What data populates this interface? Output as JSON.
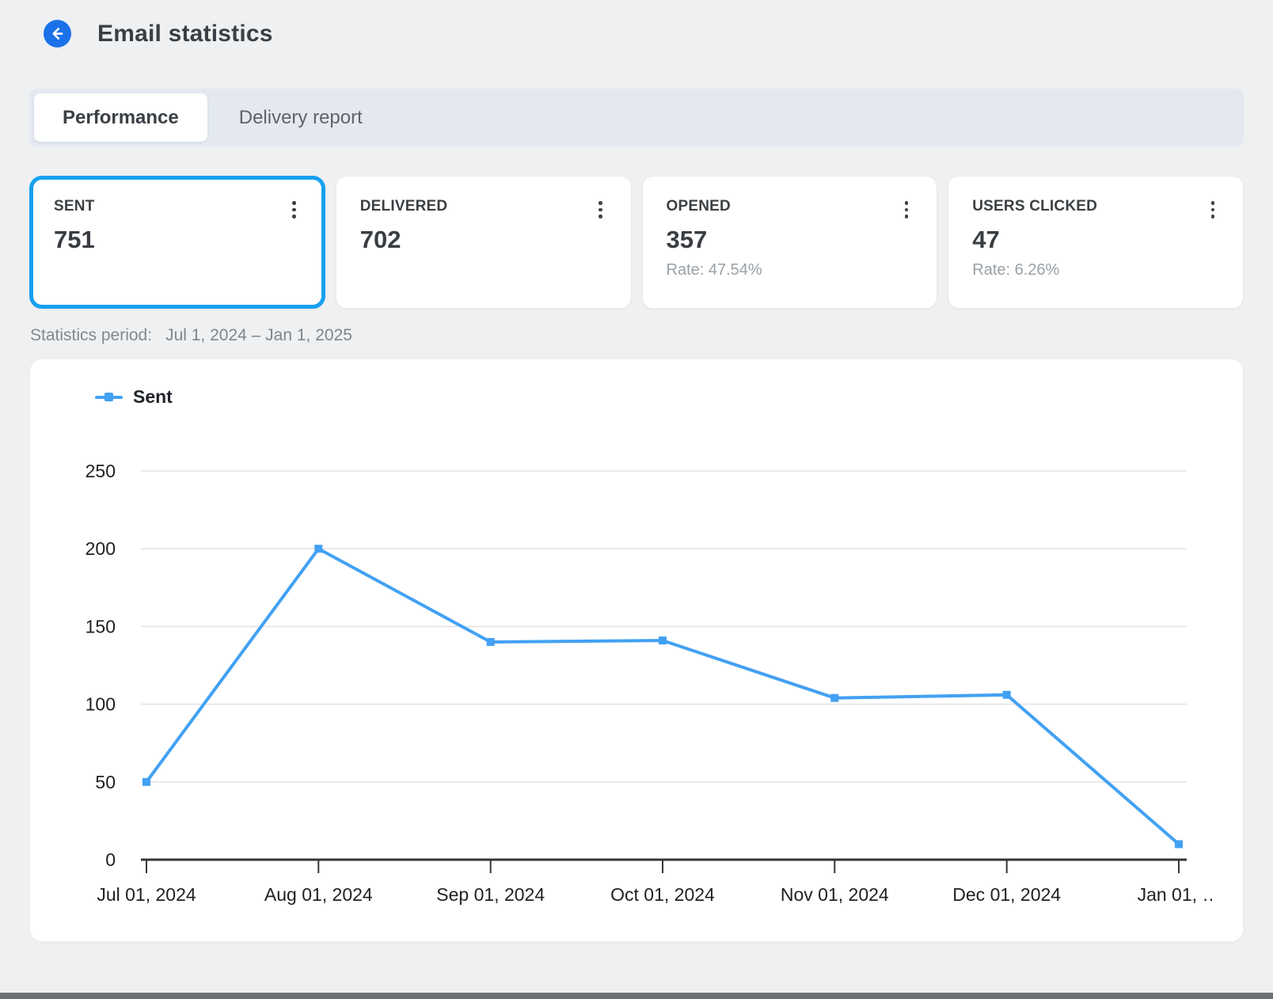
{
  "header": {
    "title": "Email statistics"
  },
  "tabs": [
    {
      "label": "Performance",
      "active": true
    },
    {
      "label": "Delivery report",
      "active": false
    }
  ],
  "cards": [
    {
      "label": "SENT",
      "value": "751",
      "rate": "",
      "selected": true
    },
    {
      "label": "DELIVERED",
      "value": "702",
      "rate": "",
      "selected": false
    },
    {
      "label": "OPENED",
      "value": "357",
      "rate": "Rate: 47.54%",
      "selected": false
    },
    {
      "label": "USERS CLICKED",
      "value": "47",
      "rate": "Rate: 6.26%",
      "selected": false
    }
  ],
  "period": {
    "label": "Statistics period:",
    "value": "Jul 1, 2024 – Jan 1, 2025"
  },
  "chart_data": {
    "type": "line",
    "legend": [
      "Sent"
    ],
    "legend_position": "top-left",
    "categories": [
      "Jul 01, 2024",
      "Aug 01, 2024",
      "Sep 01, 2024",
      "Oct 01, 2024",
      "Nov 01, 2024",
      "Dec 01, 2024",
      "Jan 01, …"
    ],
    "series": [
      {
        "name": "Sent",
        "values": [
          50,
          200,
          140,
          141,
          104,
          106,
          10
        ]
      }
    ],
    "ylim": [
      0,
      250
    ],
    "yticks": [
      0,
      50,
      100,
      150,
      200,
      250
    ],
    "grid": true,
    "line_color": "#42a1f3",
    "marker": "square"
  },
  "colors": {
    "accent_blue": "#1b72e8",
    "selected_border": "#17a0f0",
    "line_blue": "#42a1f3",
    "page_bg": "#eff0f1",
    "tabbar_bg": "#e4e9f1",
    "muted_text": "#9aa0a6"
  }
}
